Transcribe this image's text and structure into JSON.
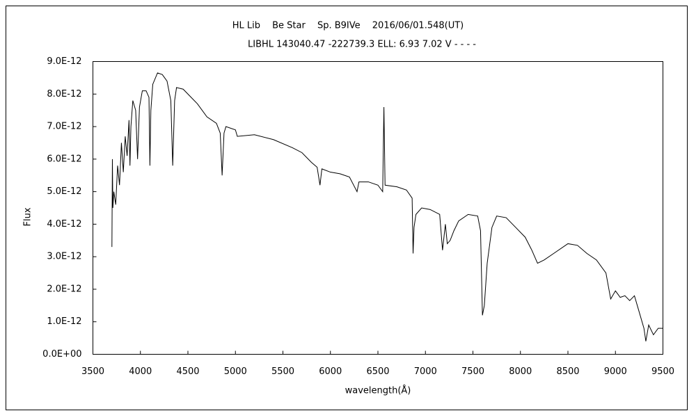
{
  "chart_data": {
    "type": "line",
    "title": "HL Lib　 Be Star　 Sp. B9IVe　 2016/06/01.548(UT)",
    "subtitle": "LIBHL 143040.47 -222739.3 ELL: 6.93 7.02 V - - - -",
    "x_label": "wavelength(Å)",
    "y_label": "Flux",
    "xlim": [
      3500,
      9500
    ],
    "xticks": [
      3500,
      4000,
      4500,
      5000,
      5500,
      6000,
      6500,
      7000,
      7500,
      8000,
      8500,
      9000,
      9500
    ],
    "ylim": [
      0,
      9e-12
    ],
    "yticks": [
      {
        "value": 0,
        "label": "0.0E+00"
      },
      {
        "value": 1e-12,
        "label": "1.0E-12"
      },
      {
        "value": 2e-12,
        "label": "2.0E-12"
      },
      {
        "value": 3e-12,
        "label": "3.0E-12"
      },
      {
        "value": 4e-12,
        "label": "4.0E-12"
      },
      {
        "value": 5e-12,
        "label": "5.0E-12"
      },
      {
        "value": 6e-12,
        "label": "6.0E-12"
      },
      {
        "value": 7e-12,
        "label": "7.0E-12"
      },
      {
        "value": 8e-12,
        "label": "8.0E-12"
      },
      {
        "value": 9e-12,
        "label": "9.0E-12"
      }
    ],
    "grid": false,
    "series": [
      {
        "color": "#000000",
        "x": [
          3700,
          3705,
          3710,
          3720,
          3740,
          3760,
          3780,
          3800,
          3820,
          3840,
          3860,
          3880,
          3890,
          3900,
          3920,
          3950,
          3970,
          3990,
          4020,
          4060,
          4090,
          4100,
          4110,
          4130,
          4180,
          4230,
          4280,
          4320,
          4340,
          4360,
          4380,
          4450,
          4500,
          4600,
          4700,
          4800,
          4840,
          4860,
          4880,
          4900,
          5000,
          5020,
          5200,
          5400,
          5600,
          5700,
          5800,
          5860,
          5890,
          5910,
          6000,
          6100,
          6200,
          6280,
          6300,
          6400,
          6500,
          6550,
          6563,
          6575,
          6700,
          6800,
          6860,
          6870,
          6880,
          6900,
          6960,
          7050,
          7150,
          7180,
          7210,
          7230,
          7260,
          7300,
          7350,
          7450,
          7550,
          7580,
          7600,
          7620,
          7650,
          7700,
          7750,
          7850,
          7950,
          8050,
          8120,
          8180,
          8250,
          8350,
          8500,
          8600,
          8700,
          8800,
          8900,
          8950,
          9000,
          9050,
          9100,
          9150,
          9200,
          9250,
          9300,
          9320,
          9350,
          9400,
          9450,
          9500
        ],
        "values": [
          3.3e-12,
          6e-12,
          4.5e-12,
          5e-12,
          4.6e-12,
          5.8e-12,
          5.2e-12,
          6.5e-12,
          5.6e-12,
          6.7e-12,
          6.1e-12,
          7.2e-12,
          5.8e-12,
          7e-12,
          7.8e-12,
          7.5e-12,
          6e-12,
          7.6e-12,
          8.1e-12,
          8.1e-12,
          7.9e-12,
          5.8e-12,
          7.5e-12,
          8.3e-12,
          8.65e-12,
          8.6e-12,
          8.4e-12,
          7.8e-12,
          5.8e-12,
          7.8e-12,
          8.2e-12,
          8.15e-12,
          8e-12,
          7.7e-12,
          7.3e-12,
          7.1e-12,
          6.8e-12,
          5.5e-12,
          6.8e-12,
          7e-12,
          6.9e-12,
          6.7e-12,
          6.75e-12,
          6.6e-12,
          6.35e-12,
          6.2e-12,
          5.9e-12,
          5.75e-12,
          5.2e-12,
          5.7e-12,
          5.6e-12,
          5.55e-12,
          5.45e-12,
          5e-12,
          5.3e-12,
          5.3e-12,
          5.2e-12,
          5e-12,
          7.6e-12,
          5.2e-12,
          5.15e-12,
          5.05e-12,
          4.8e-12,
          3.1e-12,
          3.9e-12,
          4.3e-12,
          4.5e-12,
          4.45e-12,
          4.3e-12,
          3.2e-12,
          4e-12,
          3.4e-12,
          3.5e-12,
          3.8e-12,
          4.1e-12,
          4.3e-12,
          4.25e-12,
          3.8e-12,
          1.2e-12,
          1.5e-12,
          2.8e-12,
          3.9e-12,
          4.25e-12,
          4.2e-12,
          3.9e-12,
          3.6e-12,
          3.2e-12,
          2.8e-12,
          2.9e-12,
          3.1e-12,
          3.4e-12,
          3.35e-12,
          3.1e-12,
          2.9e-12,
          2.5e-12,
          1.7e-12,
          1.95e-12,
          1.75e-12,
          1.8e-12,
          1.65e-12,
          1.8e-12,
          1.3e-12,
          8e-13,
          4e-13,
          9e-13,
          6e-13,
          8e-13,
          8e-13
        ]
      }
    ]
  }
}
